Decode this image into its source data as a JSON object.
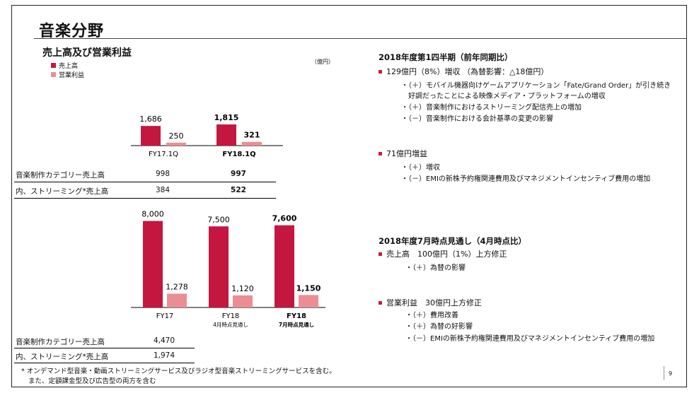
{
  "page": {
    "title": "音楽分野",
    "page_number": "9"
  },
  "left": {
    "subtitle": "売上高及び営業利益",
    "unit": "（億円）",
    "legend": [
      {
        "label": "売上高",
        "color": "#c4173f"
      },
      {
        "label": "営業利益",
        "color": "#ea8e93"
      }
    ]
  },
  "chart_data": [
    {
      "type": "bar",
      "title": "売上高及び営業利益",
      "categories": [
        "FY17.1Q",
        "FY18.1Q"
      ],
      "series": [
        {
          "name": "売上高",
          "values": [
            1686,
            1815
          ]
        },
        {
          "name": "営業利益",
          "values": [
            250,
            321
          ]
        }
      ],
      "value_labels": {
        "売上高": [
          "1,686",
          "1,815"
        ],
        "営業利益": [
          "250",
          "321"
        ]
      },
      "bold_categories": [
        false,
        true
      ],
      "unit": "億円",
      "table": {
        "rows": [
          {
            "label": "音楽制作カテゴリー売上高",
            "values": [
              "998",
              "997"
            ]
          },
          {
            "label": "内、ストリーミング*売上高",
            "values": [
              "384",
              "522"
            ]
          }
        ]
      }
    },
    {
      "type": "bar",
      "categories": [
        "FY17",
        "FY18",
        "FY18"
      ],
      "category_sublabels": [
        "",
        "4月時点見通し",
        "7月時点見通し"
      ],
      "series": [
        {
          "name": "売上高",
          "values": [
            8000,
            7500,
            7600
          ]
        },
        {
          "name": "営業利益",
          "values": [
            1278,
            1120,
            1150
          ]
        }
      ],
      "value_labels": {
        "売上高": [
          "8,000",
          "7,500",
          "7,600"
        ],
        "営業利益": [
          "1,278",
          "1,120",
          "1,150"
        ]
      },
      "bold_categories": [
        false,
        false,
        true
      ],
      "unit": "億円",
      "table": {
        "rows": [
          {
            "label": "音楽制作カテゴリー売上高",
            "values": [
              "4,470"
            ]
          },
          {
            "label": "内、ストリーミング*売上高",
            "values": [
              "1,974"
            ]
          }
        ]
      }
    }
  ],
  "footnote": {
    "line1": "* オンデマンド型音楽・動画ストリーミングサービス及びラジオ型音楽ストリーミングサービスを含む。",
    "line2": "また、定額課金型及び広告型の両方を含む"
  },
  "right": {
    "q1": {
      "heading": "2018年度第1四半期（前年同期比）",
      "b1": "129億円（8%）増収 （為替影響：△18億円）",
      "b1_subs": [
        "・（＋）モバイル機器向けゲームアプリケーション「Fate/Grand Order」が引き続き",
        "　好調だったことによる映像メディア・プラットフォームの増収",
        "・（＋）音楽制作におけるストリーミング配信売上の増加",
        "・（－）音楽制作における会計基準の変更の影響"
      ],
      "b2": "71億円増益",
      "b2_subs": [
        "・（＋）増収",
        "・（－）EMIの新株予約権関連費用及びマネジメントインセンティブ費用の増加"
      ]
    },
    "fy": {
      "heading": "2018年度7月時点見通し（4月時点比）",
      "b1": "売上高　100億円（1%）上方修正",
      "b1_subs": [
        "・（＋）為替の影響"
      ],
      "b2": "営業利益　30億円上方修正",
      "b2_subs": [
        "・（＋）費用改善",
        "・（＋）為替の好影響",
        "・（－）EMIの新株予約権関連費用及びマネジメントインセンティブ費用の増加"
      ]
    }
  }
}
